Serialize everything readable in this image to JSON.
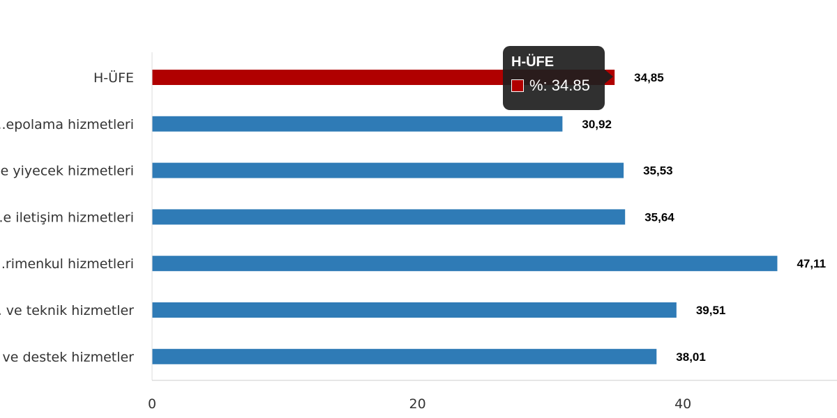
{
  "chart_data": {
    "type": "bar",
    "orientation": "horizontal",
    "categories": [
      "H-ÜFE",
      "...epolama hizmetleri",
      "...e yiyecek hizmetleri",
      "...e iletişim hizmetleri",
      "...rimenkul hizmetleri",
      "... ve teknik hizmetler",
      "... ve destek hizmetler"
    ],
    "values": [
      34.85,
      30.92,
      35.53,
      35.64,
      47.11,
      39.51,
      38.01
    ],
    "value_labels": [
      "34,85",
      "30,92",
      "35,53",
      "35,64",
      "47,11",
      "39,51",
      "38,01"
    ],
    "colors": [
      "#b00000",
      "#2f7bb6",
      "#2f7bb6",
      "#2f7bb6",
      "#2f7bb6",
      "#2f7bb6",
      "#2f7bb6"
    ],
    "xlim": [
      0,
      51.5
    ],
    "x_ticks": [
      0,
      20,
      40
    ],
    "x_tick_labels": [
      "0",
      "20",
      "40"
    ],
    "grid": false,
    "tooltip": {
      "title": "H-ÜFE",
      "text": "%: 34.85",
      "swatch_color": "#b00000"
    }
  }
}
